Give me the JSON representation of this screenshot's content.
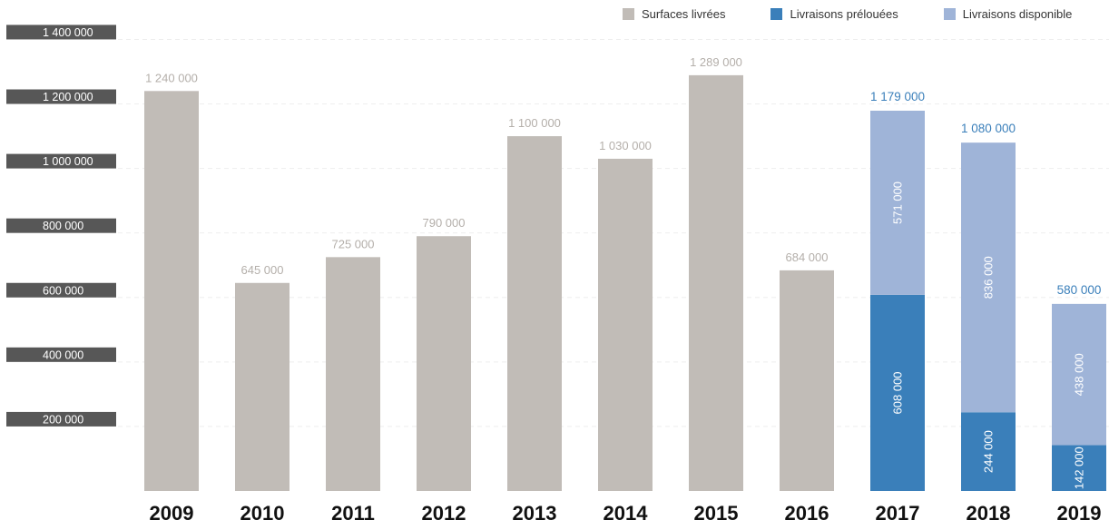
{
  "chart_data": {
    "type": "bar",
    "stacked": true,
    "categories": [
      "2009",
      "2010",
      "2011",
      "2012",
      "2013",
      "2014",
      "2015",
      "2016",
      "2017",
      "2018",
      "2019"
    ],
    "series": [
      {
        "name": "Surfaces livrées",
        "color": "#c1bcb7",
        "values": [
          1240000,
          645000,
          725000,
          790000,
          1100000,
          1030000,
          1289000,
          684000,
          null,
          null,
          null
        ],
        "labels": [
          "1 240 000",
          "645 000",
          "725 000",
          "790 000",
          "1 100 000",
          "1 030 000",
          "1 289 000",
          "684 000",
          "",
          "",
          ""
        ]
      },
      {
        "name": "Livraisons prélouées",
        "color": "#3a7fba",
        "values": [
          null,
          null,
          null,
          null,
          null,
          null,
          null,
          null,
          608000,
          244000,
          142000
        ],
        "labels": [
          "",
          "",
          "",
          "",
          "",
          "",
          "",
          "",
          "608 000",
          "244 000",
          "142 000"
        ]
      },
      {
        "name": "Livraisons disponible",
        "color": "#9fb4d8",
        "values": [
          null,
          null,
          null,
          null,
          null,
          null,
          null,
          null,
          571000,
          836000,
          438000
        ],
        "labels": [
          "",
          "",
          "",
          "",
          "",
          "",
          "",
          "",
          "571 000",
          "836 000",
          "438 000"
        ]
      }
    ],
    "totals": {
      "indices": [
        8,
        9,
        10
      ],
      "values": [
        1179000,
        1080000,
        580000
      ],
      "labels": [
        "1 179 000",
        "1 080 000",
        "580 000"
      ],
      "color": "#3a7fba"
    },
    "y_ticks": [
      200000,
      400000,
      600000,
      800000,
      1000000,
      1200000,
      1400000
    ],
    "y_tick_labels": [
      "200 000",
      "400 000",
      "600 000",
      "800 000",
      "1 000 000",
      "1 200 000",
      "1 400 000"
    ],
    "ylim": [
      0,
      1400000
    ],
    "grid": true,
    "legend_position": "top-right",
    "title": "",
    "xlabel": "",
    "ylabel": ""
  }
}
